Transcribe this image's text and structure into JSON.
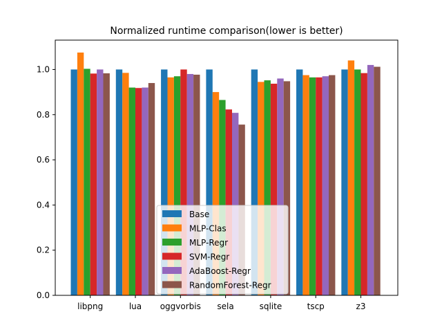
{
  "chart_data": {
    "type": "bar",
    "title": "Normalized runtime comparison(lower is better)",
    "xlabel": "",
    "ylabel": "",
    "ylim": [
      0,
      1.13
    ],
    "yticks": [
      "0.0",
      "0.2",
      "0.4",
      "0.6",
      "0.8",
      "1.0"
    ],
    "ytick_values": [
      0.0,
      0.2,
      0.4,
      0.6,
      0.8,
      1.0
    ],
    "categories": [
      "libpng",
      "lua",
      "oggvorbis",
      "sela",
      "sqlite",
      "tscp",
      "z3"
    ],
    "grid": false,
    "legend_position": "lower-center",
    "series": [
      {
        "name": "Base",
        "color": "#1f77b4",
        "values": [
          1.0,
          1.0,
          1.0,
          1.0,
          1.0,
          1.0,
          1.0
        ]
      },
      {
        "name": "MLP-Clas",
        "color": "#ff7f0e",
        "values": [
          1.075,
          0.985,
          0.965,
          0.9,
          0.945,
          0.975,
          1.04
        ]
      },
      {
        "name": "MLP-Regr",
        "color": "#2ca02c",
        "values": [
          1.003,
          0.92,
          0.97,
          0.865,
          0.952,
          0.965,
          1.0
        ]
      },
      {
        "name": "SVM-Regr",
        "color": "#d62728",
        "values": [
          0.982,
          0.918,
          1.0,
          0.823,
          0.937,
          0.965,
          0.984
        ]
      },
      {
        "name": "AdaBoost-Regr",
        "color": "#9467bd",
        "values": [
          1.0,
          0.92,
          0.98,
          0.808,
          0.96,
          0.97,
          1.02
        ]
      },
      {
        "name": "RandomForest-Regr",
        "color": "#8c564b",
        "values": [
          0.983,
          0.94,
          0.977,
          0.756,
          0.948,
          0.975,
          1.012
        ]
      }
    ]
  }
}
